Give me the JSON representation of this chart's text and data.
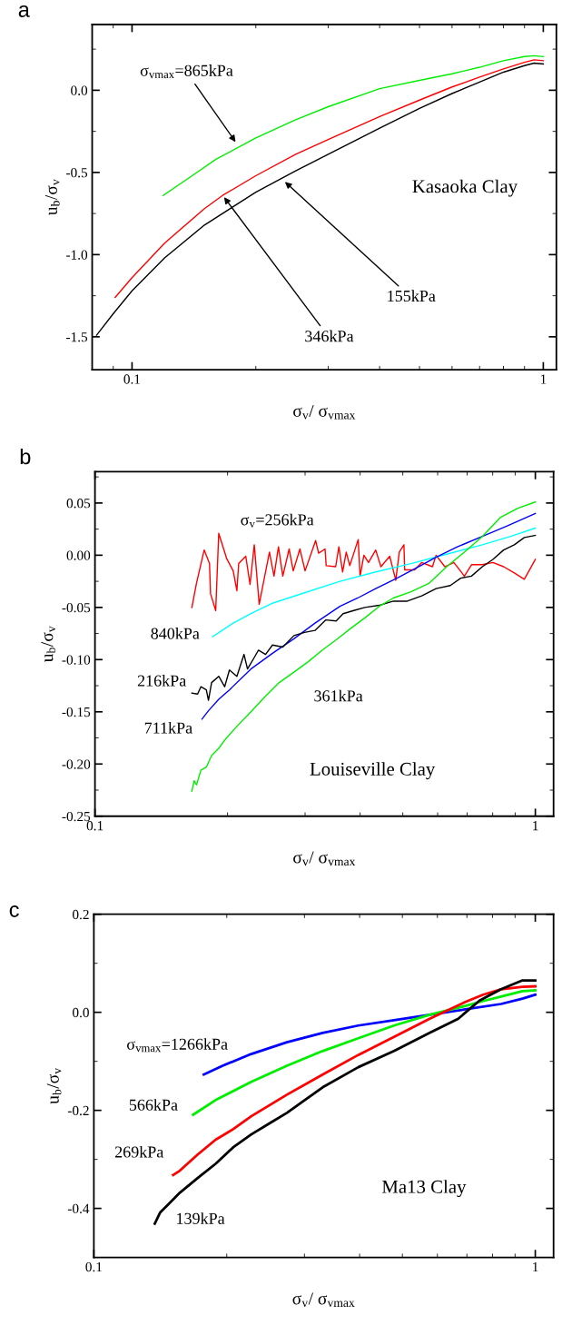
{
  "chart_data": [
    {
      "type": "line",
      "title": "a",
      "xlabel": "σ$_{v}$/ σ$_{vmax}$",
      "ylabel": "u$_{b}$/σ$_{v}$",
      "log": "x",
      "xlim": [
        0.08,
        1.076
      ],
      "ylim": [
        -1.7,
        0.4
      ],
      "xticks": [
        0.1,
        1
      ],
      "yticks": [
        {
          "value": -1.5,
          "label": "-1.5"
        },
        {
          "value": -1.0,
          "label": "-1.0"
        },
        {
          "value": -0.5,
          "label": "-0.5"
        },
        {
          "value": 0.0,
          "label": "0.0"
        }
      ],
      "grid": false,
      "marker": "none",
      "line_style": "solid",
      "series": [
        {
          "color": "#000000",
          "x": [
            0.082,
            0.09,
            0.1,
            0.12,
            0.15,
            0.2,
            0.25,
            0.3,
            0.4,
            0.5,
            0.6,
            0.7,
            0.8,
            0.9,
            0.95,
            1.0
          ],
          "values": [
            -1.49,
            -1.36,
            -1.22,
            -1.02,
            -0.82,
            -0.62,
            -0.49,
            -0.39,
            -0.23,
            -0.11,
            -0.02,
            0.05,
            0.11,
            0.15,
            0.165,
            0.16
          ]
        },
        {
          "color": "#ff0000",
          "x": [
            0.091,
            0.1,
            0.12,
            0.15,
            0.166,
            0.2,
            0.25,
            0.3,
            0.4,
            0.5,
            0.6,
            0.7,
            0.8,
            0.9,
            0.95,
            1.0
          ],
          "values": [
            -1.26,
            -1.14,
            -0.93,
            -0.72,
            -0.64,
            -0.52,
            -0.39,
            -0.3,
            -0.16,
            -0.06,
            0.02,
            0.08,
            0.13,
            0.17,
            0.185,
            0.18
          ]
        },
        {
          "color": "#00ee00",
          "x": [
            0.119,
            0.14,
            0.16,
            0.2,
            0.25,
            0.3,
            0.4,
            0.5,
            0.6,
            0.7,
            0.8,
            0.9,
            0.95,
            1.0
          ],
          "values": [
            -0.64,
            -0.52,
            -0.42,
            -0.29,
            -0.18,
            -0.1,
            0.01,
            0.06,
            0.1,
            0.14,
            0.18,
            0.205,
            0.21,
            0.205
          ]
        }
      ],
      "annotations": [
        {
          "text": "σ$_{vmax}$=865kPa",
          "x": 0.18,
          "y": -0.327
        },
        {
          "text": "155kPa",
          "x": 0.233,
          "y": -0.547
        },
        {
          "text": "346kPa",
          "x": 0.166,
          "y": -0.638
        },
        "Kasaoka Clay"
      ]
    },
    {
      "type": "line",
      "title": "b",
      "xlabel": "σ$_{v}$/ σ$_{vmax}$",
      "ylabel": "u$_{b}$/σ$_{v}$",
      "log": "x",
      "xlim": [
        0.1,
        1.1
      ],
      "ylim": [
        -0.25,
        0.08
      ],
      "xticks": [
        0.1,
        1
      ],
      "yticks": [
        {
          "value": -0.25,
          "label": "-0.25"
        },
        {
          "value": -0.2,
          "label": "-0.20"
        },
        {
          "value": -0.15,
          "label": "-0.15"
        },
        {
          "value": -0.1,
          "label": "-0.10"
        },
        {
          "value": -0.05,
          "label": "-0.05"
        },
        {
          "value": 0.0,
          "label": "0.00"
        },
        {
          "value": 0.05,
          "label": "0.05"
        }
      ],
      "grid": false,
      "marker": "none",
      "line_style": "solid",
      "series": [
        {
          "color": "#ff0000",
          "x": [
            0.166,
            0.17,
            0.177,
            0.182,
            0.183,
            0.188,
            0.191,
            0.199,
            0.206,
            0.21,
            0.212,
            0.22,
            0.225,
            0.23,
            0.236,
            0.249,
            0.255,
            0.261,
            0.267,
            0.276,
            0.282,
            0.292,
            0.3,
            0.317,
            0.322,
            0.333,
            0.335,
            0.352,
            0.358,
            0.365,
            0.372,
            0.379,
            0.396,
            0.4,
            0.408,
            0.418,
            0.434,
            0.446,
            0.467,
            0.482,
            0.491,
            0.503,
            0.505,
            0.532,
            0.552,
            0.584,
            0.595,
            0.623,
            0.653,
            0.69,
            0.717,
            0.758,
            0.801,
            0.847,
            0.896,
            0.944,
            1.0
          ],
          "values": [
            -0.05,
            -0.027,
            0.005,
            -0.008,
            -0.037,
            -0.053,
            0.021,
            -0.003,
            -0.015,
            -0.034,
            -0.008,
            -0.001,
            -0.028,
            0.01,
            -0.047,
            0.003,
            -0.02,
            0.008,
            -0.02,
            0.006,
            -0.015,
            0.006,
            -0.015,
            0.014,
            0.002,
            0.006,
            -0.01,
            -0.011,
            0.008,
            -0.016,
            0.003,
            -0.01,
            0.015,
            -0.02,
            0.0,
            -0.007,
            0.005,
            -0.011,
            -0.001,
            -0.024,
            0.003,
            0.01,
            -0.014,
            -0.014,
            -0.007,
            -0.011,
            0.0,
            -0.011,
            -0.007,
            -0.02,
            -0.009,
            -0.009,
            -0.007,
            -0.011,
            -0.017,
            -0.023,
            -0.004
          ]
        },
        {
          "color": "#00ffff",
          "x": [
            0.185,
            0.206,
            0.226,
            0.253,
            0.299,
            0.36,
            0.434,
            0.522,
            0.629,
            0.758,
            0.879,
            1.0
          ],
          "values": [
            -0.078,
            -0.065,
            -0.056,
            -0.046,
            -0.036,
            -0.025,
            -0.016,
            -0.008,
            0.001,
            0.01,
            0.018,
            0.026
          ]
        },
        {
          "color": "#0000ff",
          "x": [
            0.175,
            0.181,
            0.191,
            0.202,
            0.226,
            0.253,
            0.283,
            0.316,
            0.36,
            0.395,
            0.434,
            0.485,
            0.532,
            0.595,
            0.665,
            0.758,
            0.863,
            1.0
          ],
          "values": [
            -0.157,
            -0.149,
            -0.138,
            -0.129,
            -0.109,
            -0.094,
            -0.08,
            -0.065,
            -0.049,
            -0.041,
            -0.032,
            -0.022,
            -0.013,
            -0.002,
            0.008,
            0.018,
            0.028,
            0.04
          ]
        },
        {
          "color": "#000000",
          "x": [
            0.166,
            0.171,
            0.174,
            0.179,
            0.181,
            0.184,
            0.191,
            0.197,
            0.202,
            0.21,
            0.218,
            0.222,
            0.23,
            0.235,
            0.244,
            0.253,
            0.267,
            0.283,
            0.299,
            0.316,
            0.334,
            0.353,
            0.366,
            0.387,
            0.41,
            0.442,
            0.476,
            0.512,
            0.552,
            0.595,
            0.641,
            0.677,
            0.716,
            0.758,
            0.801,
            0.847,
            0.896,
            0.944,
            1.0
          ],
          "values": [
            -0.132,
            -0.133,
            -0.126,
            -0.129,
            -0.139,
            -0.122,
            -0.116,
            -0.126,
            -0.11,
            -0.116,
            -0.095,
            -0.109,
            -0.098,
            -0.091,
            -0.095,
            -0.086,
            -0.088,
            -0.077,
            -0.074,
            -0.072,
            -0.062,
            -0.063,
            -0.056,
            -0.053,
            -0.05,
            -0.048,
            -0.044,
            -0.044,
            -0.039,
            -0.032,
            -0.029,
            -0.022,
            -0.02,
            -0.011,
            -0.004,
            0.005,
            0.01,
            0.017,
            0.019
          ]
        },
        {
          "color": "#00ee00",
          "x": [
            0.166,
            0.168,
            0.17,
            0.174,
            0.179,
            0.184,
            0.191,
            0.198,
            0.21,
            0.226,
            0.244,
            0.262,
            0.283,
            0.305,
            0.328,
            0.353,
            0.381,
            0.41,
            0.442,
            0.476,
            0.522,
            0.573,
            0.629,
            0.69,
            0.758,
            0.832,
            0.913,
            1.0
          ],
          "values": [
            -0.226,
            -0.216,
            -0.22,
            -0.206,
            -0.203,
            -0.192,
            -0.185,
            -0.176,
            -0.164,
            -0.15,
            -0.135,
            -0.122,
            -0.112,
            -0.102,
            -0.091,
            -0.081,
            -0.07,
            -0.06,
            -0.049,
            -0.041,
            -0.035,
            -0.027,
            -0.011,
            0.003,
            0.018,
            0.036,
            0.045,
            0.051
          ]
        }
      ],
      "annotations": [
        "σ$_{v}$=256kPa",
        "840kPa",
        "216kPa",
        "711kPa",
        "361kPa",
        "Louiseville Clay"
      ]
    },
    {
      "type": "line",
      "title": "c",
      "xlabel": "σ$_{v}$/ σ$_{vmax}$",
      "ylabel": "u$_{b}$/σ$_{v}$",
      "log": "x",
      "xlim": [
        0.1,
        1.1
      ],
      "ylim": [
        -0.5,
        0.2
      ],
      "xticks": [
        0.1,
        1
      ],
      "yticks": [
        {
          "value": -0.4,
          "label": "-0.4"
        },
        {
          "value": -0.2,
          "label": "-0.2"
        },
        {
          "value": 0.0,
          "label": "0.0"
        },
        0.2
      ],
      "grid": false,
      "marker": "none",
      "line_style": "solid",
      "series": [
        {
          "color": "#0000ff",
          "x": [
            0.1774,
            0.1958,
            0.2273,
            0.2738,
            0.3298,
            0.3972,
            0.4786,
            0.5765,
            0.6944,
            0.8364,
            0.9352,
            1.0
          ],
          "values": [
            -0.127,
            -0.109,
            -0.085,
            -0.061,
            -0.042,
            -0.027,
            -0.016,
            -0.005,
            0.006,
            0.017,
            0.028,
            0.036
          ]
        },
        {
          "color": "#00ee00",
          "x": [
            0.1678,
            0.1887,
            0.2273,
            0.2738,
            0.3298,
            0.3972,
            0.4786,
            0.5765,
            0.6944,
            0.7621,
            0.8364,
            0.9352,
            1.0
          ],
          "values": [
            -0.209,
            -0.179,
            -0.142,
            -0.109,
            -0.079,
            -0.053,
            -0.027,
            -0.005,
            0.013,
            0.023,
            0.032,
            0.043,
            0.045
          ]
        },
        {
          "color": "#ff0000",
          "x": [
            0.1512,
            0.1566,
            0.1719,
            0.1887,
            0.2071,
            0.2273,
            0.2738,
            0.3298,
            0.3972,
            0.4786,
            0.5765,
            0.6944,
            0.7621,
            0.8364,
            0.9352,
            1.0
          ],
          "values": [
            -0.332,
            -0.323,
            -0.29,
            -0.26,
            -0.238,
            -0.212,
            -0.168,
            -0.127,
            -0.087,
            -0.05,
            -0.013,
            0.021,
            0.036,
            0.047,
            0.052,
            0.053
          ]
        },
        {
          "color": "#000000",
          "x": [
            0.1374,
            0.1414,
            0.1481,
            0.1566,
            0.1719,
            0.1887,
            0.2071,
            0.2273,
            0.2494,
            0.2738,
            0.3004,
            0.3298,
            0.3972,
            0.4786,
            0.5765,
            0.6692,
            0.7478,
            0.8364,
            0.9352,
            1.0
          ],
          "values": [
            -0.431,
            -0.408,
            -0.39,
            -0.368,
            -0.338,
            -0.309,
            -0.275,
            -0.249,
            -0.227,
            -0.205,
            -0.179,
            -0.153,
            -0.112,
            -0.079,
            -0.042,
            -0.013,
            0.024,
            0.047,
            0.065,
            0.065
          ]
        }
      ],
      "annotations": [
        "σ$_{vmax}$=1266kPa",
        "566kPa",
        "269kPa",
        "139kPa",
        "Ma13 Clay"
      ]
    }
  ]
}
